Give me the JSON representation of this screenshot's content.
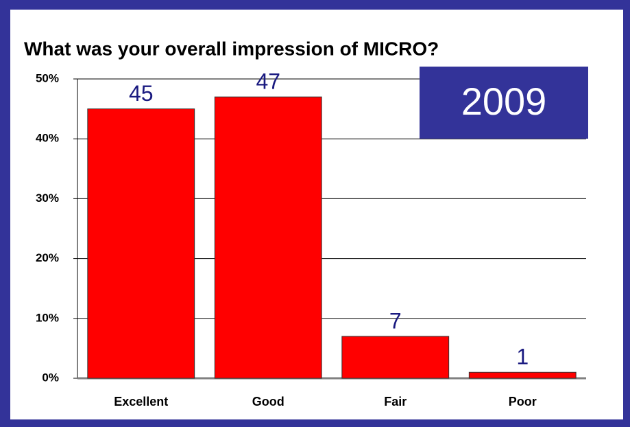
{
  "chart_data": {
    "type": "bar",
    "title": "What was your overall impression of MICRO?",
    "annotation": "2009",
    "categories": [
      "Excellent",
      "Good",
      "Fair",
      "Poor"
    ],
    "values": [
      45,
      47,
      7,
      1
    ],
    "color": "#ff0000",
    "ylim": [
      0,
      50
    ],
    "yticks": [
      {
        "value": 0,
        "label": "0%"
      },
      {
        "value": 10,
        "label": "10%"
      },
      {
        "value": 20,
        "label": "20%"
      },
      {
        "value": 30,
        "label": "30%"
      },
      {
        "value": 40,
        "label": "40%"
      },
      {
        "value": 50,
        "label": "50%"
      }
    ],
    "grid": true
  }
}
